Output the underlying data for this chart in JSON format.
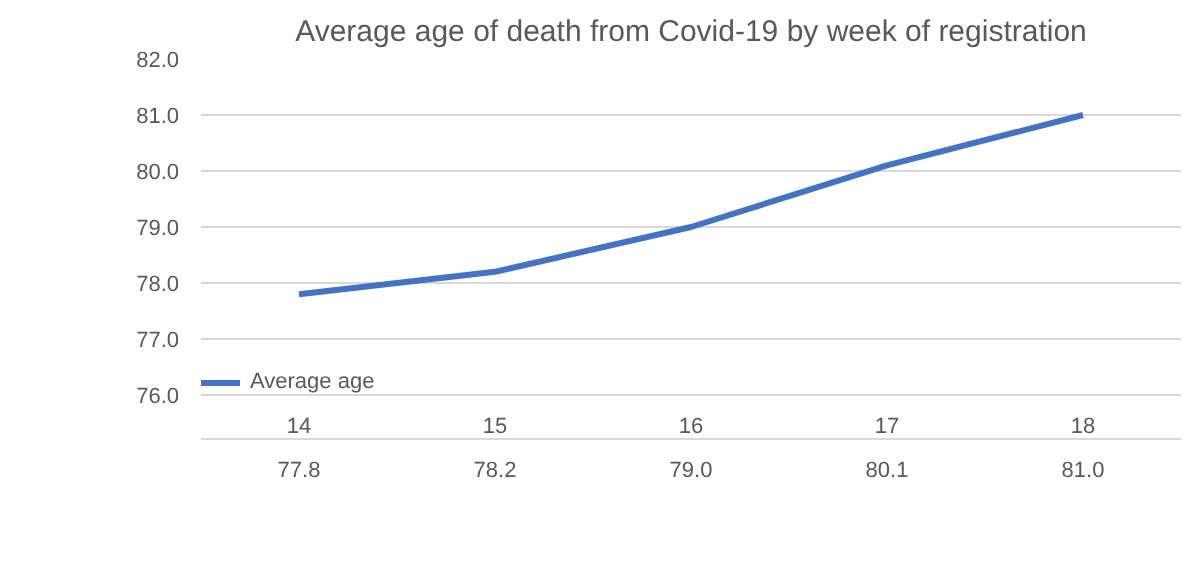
{
  "chart_data": {
    "type": "line",
    "title": "Average age of death from Covid-19 by week of registration",
    "categories": [
      "14",
      "15",
      "16",
      "17",
      "18"
    ],
    "series": [
      {
        "name": "Average age",
        "color": "#4472c4",
        "values": [
          77.8,
          78.2,
          79.0,
          80.1,
          81.0
        ],
        "value_labels": [
          "77.8",
          "78.2",
          "79.0",
          "80.1",
          "81.0"
        ]
      }
    ],
    "ylim": [
      76,
      82
    ],
    "yticks": [
      {
        "value": 76,
        "label": "76.0"
      },
      {
        "value": 77,
        "label": "77.0"
      },
      {
        "value": 78,
        "label": "78.0"
      },
      {
        "value": 79,
        "label": "79.0"
      },
      {
        "value": 80,
        "label": "80.0"
      },
      {
        "value": 81,
        "label": "81.0"
      },
      {
        "value": 82,
        "label": "82.0"
      }
    ],
    "grid": "y",
    "legend": "bottom left",
    "marker": "none",
    "line_style": "solid"
  }
}
